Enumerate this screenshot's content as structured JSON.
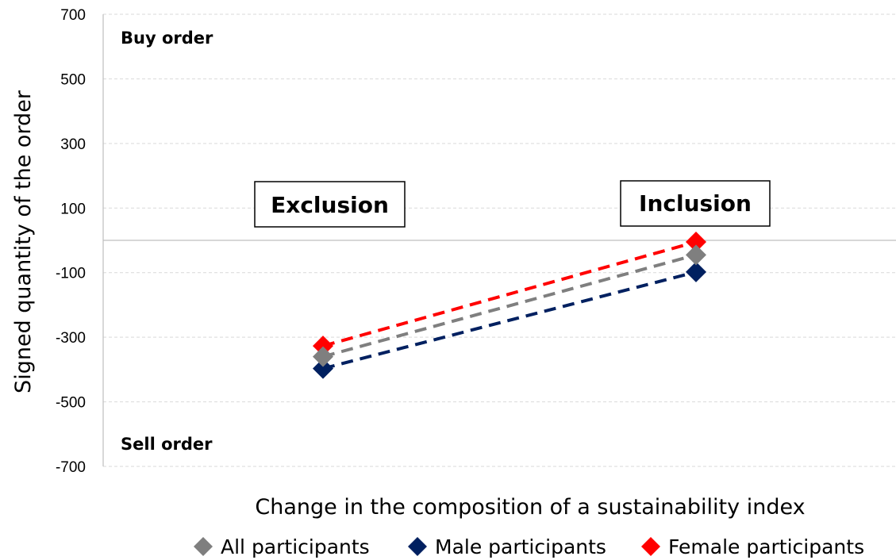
{
  "chart_data": {
    "type": "line",
    "x": [
      "Exclusion",
      "Inclusion"
    ],
    "xlabel": "Change in the composition of a sustainability index",
    "ylabel": "Signed quantity of the order",
    "ylim": [
      -700,
      700
    ],
    "yticks": [
      700,
      500,
      300,
      100,
      -100,
      -300,
      -500,
      -700
    ],
    "grid": true,
    "legend_position": "bottom",
    "zero_line": true,
    "annotations": {
      "top": "Buy order",
      "bottom": "Sell order",
      "boxes": [
        "Exclusion",
        "Inclusion"
      ]
    },
    "series": [
      {
        "name": "All participants",
        "values": [
          -360,
          -45
        ],
        "color": "#7f7f7f"
      },
      {
        "name": "Male participants",
        "values": [
          -397,
          -98
        ],
        "color": "#002060"
      },
      {
        "name": "Female participants",
        "values": [
          -327,
          -5
        ],
        "color": "#ff0000"
      }
    ]
  }
}
